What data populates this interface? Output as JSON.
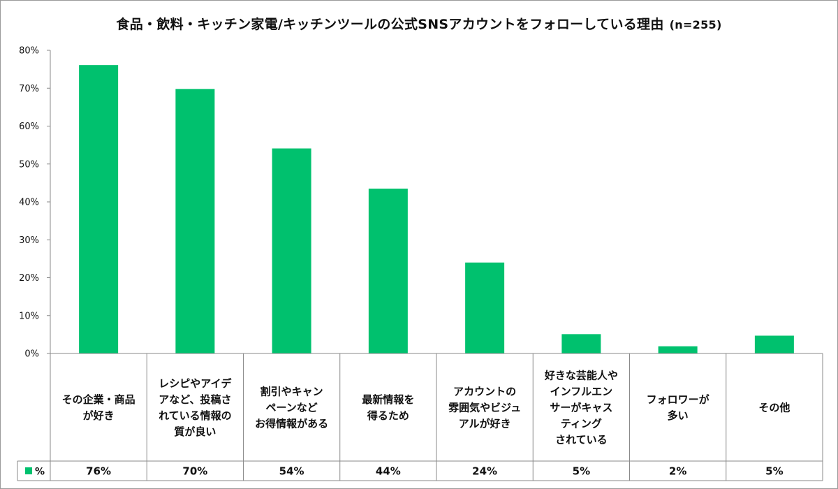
{
  "chart_data": {
    "type": "bar",
    "title": "食品・飲料・キッチン家電/キッチンツールの公式SNSアカウントをフォローしている理由",
    "subtitle": "(n=255)",
    "categories": [
      [
        "その企業・商品",
        "が好き"
      ],
      [
        "レシピやアイデ",
        "アなど、投稿さ",
        "れている情報の",
        "質が良い"
      ],
      [
        "割引やキャン",
        "ペーンなど",
        "お得情報がある"
      ],
      [
        "最新情報を",
        "得るため"
      ],
      [
        "アカウントの",
        "雰囲気やビジュ",
        "アルが好き"
      ],
      [
        "好きな芸能人や",
        "インフルエン",
        "サーがキャス",
        "ティング",
        "されている"
      ],
      [
        "フォロワーが",
        "多い"
      ],
      [
        "その他"
      ]
    ],
    "series": [
      {
        "name": "%",
        "values": [
          76,
          70,
          54,
          44,
          24,
          5,
          2,
          5
        ],
        "labels": [
          "76%",
          "70%",
          "54%",
          "44%",
          "24%",
          "5%",
          "2%",
          "5%"
        ]
      }
    ],
    "exact_values": [
      76.1,
      69.8,
      54.1,
      43.5,
      24.0,
      5.1,
      1.9,
      4.7
    ],
    "yticks": [
      "0%",
      "10%",
      "20%",
      "30%",
      "40%",
      "50%",
      "60%",
      "70%",
      "80%"
    ],
    "ylim": [
      0,
      80
    ],
    "bar_color": "#00c16e",
    "grid": false,
    "legend": "data-table-left"
  }
}
